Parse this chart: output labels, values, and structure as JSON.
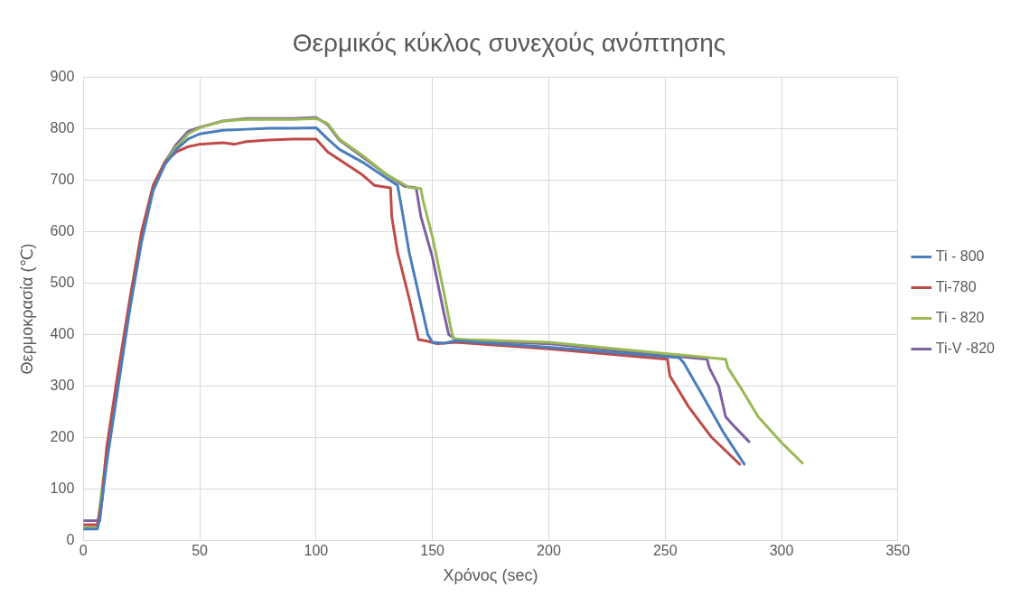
{
  "chart_data": {
    "type": "line",
    "title": "Θερμικός κύκλος συνεχούς ανόπτησης",
    "xlabel": "Χρόνος (sec)",
    "ylabel": "Θερμοκρασία (℃)",
    "xlim": [
      0,
      350
    ],
    "xticks": [
      0,
      50,
      100,
      150,
      200,
      250,
      300,
      350
    ],
    "ylim": [
      0,
      900
    ],
    "yticks": [
      0,
      100,
      200,
      300,
      400,
      500,
      600,
      700,
      800,
      900
    ],
    "grid": true,
    "legend": "right",
    "marker": "none",
    "line_style": "solid",
    "series": [
      {
        "name": "Ti - 800",
        "color": "#4a7ebb",
        "x": [
          0,
          6,
          7,
          10,
          15,
          20,
          25,
          30,
          35,
          40,
          45,
          50,
          60,
          70,
          80,
          90,
          100,
          105,
          110,
          120,
          130,
          135,
          137,
          140,
          145,
          148,
          150,
          155,
          160,
          200,
          256,
          258,
          265,
          275,
          284
        ],
        "values": [
          22,
          22,
          40,
          150,
          300,
          450,
          580,
          680,
          730,
          760,
          780,
          790,
          797,
          799,
          801,
          801,
          802,
          780,
          760,
          735,
          705,
          690,
          640,
          560,
          460,
          400,
          385,
          383,
          388,
          375,
          355,
          345,
          290,
          210,
          148
        ]
      },
      {
        "name": "Ti-780",
        "color": "#be4b48",
        "x": [
          0,
          6,
          8,
          10,
          15,
          20,
          25,
          30,
          35,
          40,
          45,
          50,
          60,
          65,
          70,
          80,
          90,
          100,
          105,
          110,
          120,
          125,
          132,
          132.5,
          135,
          140,
          144,
          147,
          152,
          160,
          200,
          251,
          252,
          260,
          270,
          282
        ],
        "values": [
          30,
          30,
          80,
          180,
          330,
          470,
          600,
          690,
          735,
          755,
          765,
          770,
          773,
          770,
          775,
          778,
          780,
          780,
          755,
          740,
          710,
          690,
          685,
          630,
          560,
          470,
          390,
          388,
          382,
          385,
          372,
          352,
          320,
          260,
          200,
          148
        ]
      },
      {
        "name": "Ti - 820",
        "color": "#98b954",
        "x": [
          0,
          6,
          8,
          10,
          15,
          20,
          25,
          30,
          35,
          40,
          45,
          50,
          60,
          70,
          80,
          90,
          100,
          105,
          110,
          120,
          130,
          140,
          145,
          146,
          150,
          155,
          158,
          159,
          165,
          200,
          250,
          276,
          277,
          282,
          290,
          300,
          309
        ],
        "values": [
          25,
          25,
          100,
          170,
          320,
          460,
          590,
          690,
          735,
          765,
          790,
          802,
          815,
          818,
          818,
          818,
          820,
          810,
          780,
          748,
          712,
          686,
          684,
          660,
          590,
          480,
          410,
          392,
          390,
          385,
          363,
          352,
          335,
          300,
          240,
          190,
          150
        ]
      },
      {
        "name": "Ti-V -820",
        "color": "#7d60a0",
        "x": [
          0,
          7,
          8,
          10,
          15,
          20,
          25,
          30,
          35,
          40,
          45,
          50,
          60,
          70,
          80,
          90,
          100,
          105,
          110,
          120,
          130,
          138,
          143,
          145,
          150,
          155,
          157,
          160,
          200,
          250,
          268,
          269,
          273,
          276,
          280,
          286
        ],
        "values": [
          38,
          38,
          80,
          160,
          310,
          460,
          585,
          685,
          735,
          770,
          795,
          803,
          815,
          820,
          820,
          820,
          822,
          808,
          778,
          745,
          712,
          688,
          685,
          630,
          550,
          440,
          400,
          390,
          382,
          360,
          352,
          335,
          300,
          240,
          220,
          192
        ]
      }
    ]
  }
}
